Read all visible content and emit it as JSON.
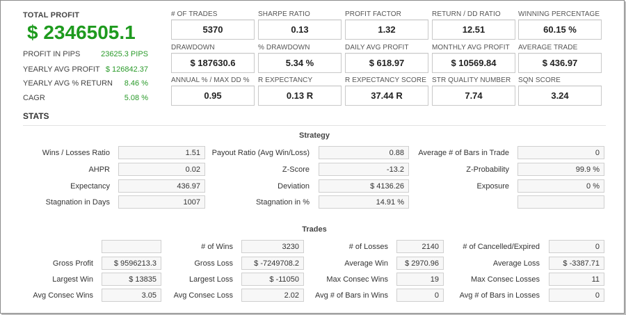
{
  "summary": {
    "total_profit_label": "TOTAL PROFIT",
    "total_profit_value": "$ 2346505.1",
    "rows": [
      {
        "label": "PROFIT IN PIPS",
        "value": "23625.3 PIPS"
      },
      {
        "label": "YEARLY AVG PROFIT",
        "value": "$ 126842.37"
      },
      {
        "label": "YEARLY AVG % RETURN",
        "value": "8.46 %"
      },
      {
        "label": "CAGR",
        "value": "5.08 %"
      }
    ],
    "value_color": "#2a9a2a",
    "total_color": "#1e9a1e"
  },
  "metrics": [
    {
      "label": "# OF TRADES",
      "value": "5370"
    },
    {
      "label": "SHARPE RATIO",
      "value": "0.13"
    },
    {
      "label": "PROFIT FACTOR",
      "value": "1.32"
    },
    {
      "label": "RETURN / DD RATIO",
      "value": "12.51"
    },
    {
      "label": "WINNING PERCENTAGE",
      "value": "60.15 %"
    },
    {
      "label": "DRAWDOWN",
      "value": "$ 187630.6"
    },
    {
      "label": "% DRAWDOWN",
      "value": "5.34 %"
    },
    {
      "label": "DAILY AVG PROFIT",
      "value": "$ 618.97"
    },
    {
      "label": "MONTHLY AVG PROFIT",
      "value": "$ 10569.84"
    },
    {
      "label": "AVERAGE TRADE",
      "value": "$ 436.97"
    },
    {
      "label": "ANNUAL % / MAX DD %",
      "value": "0.95"
    },
    {
      "label": "R EXPECTANCY",
      "value": "0.13 R"
    },
    {
      "label": "R EXPECTANCY SCORE",
      "value": "37.44 R"
    },
    {
      "label": "STR QUALITY NUMBER",
      "value": "7.74"
    },
    {
      "label": "SQN SCORE",
      "value": "3.24"
    }
  ],
  "stats_title": "STATS",
  "strategy": {
    "title": "Strategy",
    "rows": [
      [
        {
          "label": "Wins / Losses Ratio",
          "value": "1.51"
        },
        {
          "label": "Payout Ratio (Avg Win/Loss)",
          "value": "0.88"
        },
        {
          "label": "Average # of Bars in Trade",
          "value": "0"
        }
      ],
      [
        {
          "label": "AHPR",
          "value": "0.02"
        },
        {
          "label": "Z-Score",
          "value": "-13.2"
        },
        {
          "label": "Z-Probability",
          "value": "99.9 %"
        }
      ],
      [
        {
          "label": "Expectancy",
          "value": "436.97"
        },
        {
          "label": "Deviation",
          "value": "$ 4136.26"
        },
        {
          "label": "Exposure",
          "value": "0 %"
        }
      ],
      [
        {
          "label": "Stagnation in Days",
          "value": "1007"
        },
        {
          "label": "Stagnation in %",
          "value": "14.91 %"
        },
        {
          "label": "",
          "value": ""
        }
      ]
    ]
  },
  "trades": {
    "title": "Trades",
    "rows": [
      [
        {
          "label": "",
          "value": ""
        },
        {
          "label": "# of Wins",
          "value": "3230"
        },
        {
          "label": "# of Losses",
          "value": "2140"
        },
        {
          "label": "# of Cancelled/Expired",
          "value": "0"
        }
      ],
      [
        {
          "label": "Gross Profit",
          "value": "$ 9596213.3"
        },
        {
          "label": "Gross Loss",
          "value": "$ -7249708.2"
        },
        {
          "label": "Average Win",
          "value": "$ 2970.96"
        },
        {
          "label": "Average Loss",
          "value": "$ -3387.71"
        }
      ],
      [
        {
          "label": "Largest Win",
          "value": "$ 13835"
        },
        {
          "label": "Largest Loss",
          "value": "$ -11050"
        },
        {
          "label": "Max Consec Wins",
          "value": "19"
        },
        {
          "label": "Max Consec Losses",
          "value": "11"
        }
      ],
      [
        {
          "label": "Avg Consec Wins",
          "value": "3.05"
        },
        {
          "label": "Avg Consec Loss",
          "value": "2.02"
        },
        {
          "label": "Avg # of Bars in Wins",
          "value": "0"
        },
        {
          "label": "Avg # of Bars in Losses",
          "value": "0"
        }
      ]
    ]
  }
}
